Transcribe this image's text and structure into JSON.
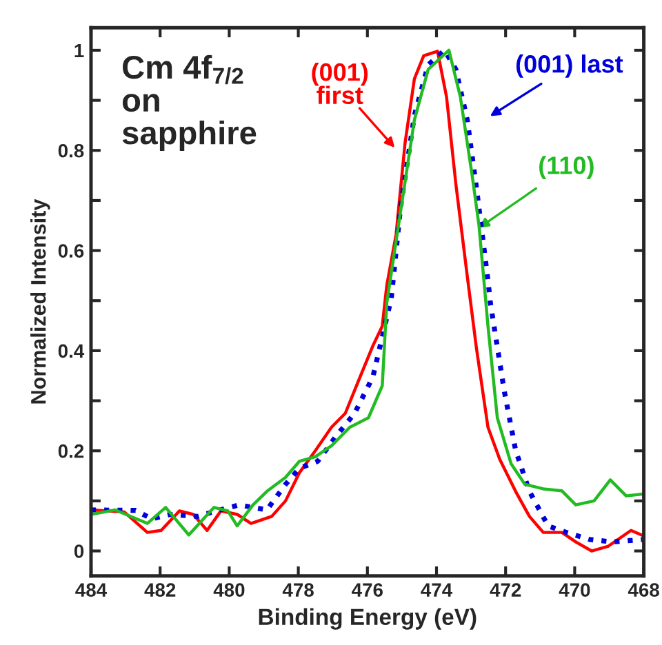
{
  "chart_data": {
    "type": "line",
    "xlabel": "Binding Energy (eV)",
    "ylabel": "Normalized Intensity",
    "xlim": [
      484,
      468
    ],
    "xticks": [
      484,
      482,
      480,
      478,
      476,
      474,
      472,
      470,
      468
    ],
    "ylim": [
      -0.05,
      1.045
    ],
    "yticks": [
      0,
      {
        "value": 0.1,
        "label": null
      },
      0.2,
      {
        "value": 0.3,
        "label": null
      },
      0.4,
      {
        "value": 0.5,
        "label": null
      },
      0.6,
      {
        "value": 0.7,
        "label": null
      },
      0.8,
      {
        "value": 0.9,
        "label": null
      },
      1
    ],
    "grid": false,
    "annotations": [
      "Cm 4f$_{7/2}$\non\nsapphire"
    ],
    "series": [
      {
        "name": "(001)\nfirst",
        "color": "#ff0000",
        "line_style": "solid",
        "x": [
          484,
          483.04,
          482.37,
          481.97,
          481.44,
          481.04,
          480.64,
          480.24,
          479.77,
          479.37,
          478.77,
          478.37,
          477.97,
          477.51,
          477.04,
          476.64,
          476.24,
          475.84,
          475.57,
          475.44,
          475.17,
          474.91,
          474.64,
          474.37,
          473.97,
          473.71,
          473.44,
          473.11,
          472.84,
          472.51,
          472.17,
          471.71,
          471.31,
          470.91,
          470.37,
          469.97,
          469.51,
          469.04,
          468.37,
          468
        ],
        "values": [
          0.082,
          0.078,
          0.037,
          0.041,
          0.08,
          0.073,
          0.041,
          0.08,
          0.073,
          0.055,
          0.069,
          0.1,
          0.156,
          0.2,
          0.247,
          0.275,
          0.343,
          0.41,
          0.449,
          0.53,
          0.632,
          0.815,
          0.943,
          0.989,
          0.998,
          0.907,
          0.733,
          0.549,
          0.403,
          0.247,
          0.183,
          0.119,
          0.069,
          0.037,
          0.037,
          0.018,
          0.0,
          0.009,
          0.041,
          0.03
        ]
      },
      {
        "name": "(001) last",
        "color": "#0000dd",
        "line_style": "dotted",
        "x": [
          484,
          482.71,
          482.24,
          481.71,
          480.91,
          480.37,
          479.71,
          478.91,
          478.37,
          477.97,
          477.44,
          476.91,
          476.37,
          475.84,
          475.31,
          475.04,
          474.64,
          474.24,
          473.77,
          473.44,
          473.11,
          472.84,
          472.51,
          472.44,
          472.04,
          471.71,
          471.31,
          470.77,
          470.24,
          469.57,
          468.91,
          468
        ],
        "values": [
          0.082,
          0.081,
          0.064,
          0.073,
          0.069,
          0.08,
          0.092,
          0.082,
          0.133,
          0.165,
          0.179,
          0.229,
          0.275,
          0.348,
          0.504,
          0.687,
          0.87,
          0.971,
          1.0,
          0.962,
          0.861,
          0.723,
          0.54,
          0.495,
          0.32,
          0.201,
          0.119,
          0.05,
          0.037,
          0.023,
          0.018,
          0.023
        ]
      },
      {
        "name": "(110)",
        "color": "#22bb22",
        "line_style": "solid",
        "x": [
          484,
          483.3,
          482.37,
          481.84,
          481.17,
          480.44,
          480.04,
          479.77,
          479.31,
          478.91,
          478.37,
          477.97,
          477.51,
          477.04,
          476.51,
          475.97,
          475.57,
          475.44,
          475.04,
          474.64,
          474.24,
          473.64,
          473.31,
          472.97,
          472.77,
          472.51,
          472.24,
          471.84,
          471.44,
          470.91,
          470.37,
          469.97,
          469.44,
          468.97,
          468.51,
          468
        ],
        "values": [
          0.073,
          0.082,
          0.055,
          0.087,
          0.032,
          0.087,
          0.08,
          0.05,
          0.092,
          0.119,
          0.147,
          0.179,
          0.188,
          0.21,
          0.247,
          0.266,
          0.33,
          0.495,
          0.678,
          0.861,
          0.962,
          1.0,
          0.907,
          0.751,
          0.65,
          0.449,
          0.266,
          0.174,
          0.133,
          0.124,
          0.12,
          0.092,
          0.1,
          0.142,
          0.11,
          0.114
        ]
      }
    ]
  }
}
